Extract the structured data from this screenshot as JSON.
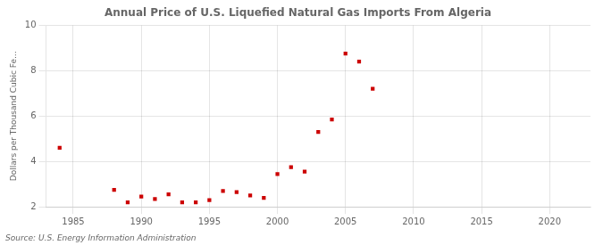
{
  "chart_data": {
    "type": "scatter",
    "title": "Annual Price of U.S. Liquefied Natural Gas Imports From Algeria",
    "ylabel": "Dollars per Thousand Cubic Fe...",
    "source": "Source: U.S. Energy Information Administration",
    "x": [
      1984,
      1988,
      1989,
      1990,
      1991,
      1992,
      1993,
      1994,
      1995,
      1996,
      1997,
      1998,
      1999,
      2000,
      2001,
      2002,
      2003,
      2004,
      2005,
      2006,
      2007
    ],
    "values": [
      4.6,
      2.75,
      2.2,
      2.45,
      2.35,
      2.55,
      2.2,
      2.2,
      2.3,
      2.7,
      2.65,
      2.5,
      2.4,
      3.45,
      3.75,
      3.55,
      5.3,
      5.85,
      8.75,
      8.4,
      7.2
    ],
    "color": "#cc0000",
    "marker": "square",
    "xlim": [
      1983,
      2023
    ],
    "xticks": [
      1985,
      1990,
      1995,
      2000,
      2005,
      2010,
      2015,
      2020
    ],
    "ylim": [
      2,
      10
    ],
    "yticks": [
      2,
      4,
      6,
      8,
      10
    ],
    "grid": true
  }
}
